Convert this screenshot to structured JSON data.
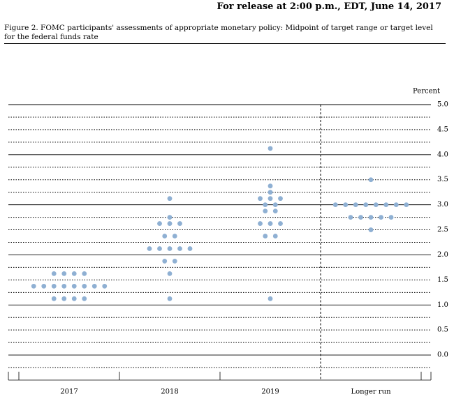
{
  "chart_data": {
    "type": "dotplot",
    "header": "For release at 2:00 p.m., EDT, June 14, 2017",
    "title": "Figure 2. FOMC participants' assessments of appropriate monetary policy: Midpoint of target range or target level for the federal funds rate",
    "y_label": "Percent",
    "categories": [
      "2017",
      "2018",
      "2019",
      "Longer run"
    ],
    "values": [
      [
        1.625,
        1.625,
        1.625,
        1.625,
        1.375,
        1.375,
        1.375,
        1.375,
        1.375,
        1.375,
        1.375,
        1.375,
        1.125,
        1.125,
        1.125,
        1.125
      ],
      [
        3.125,
        2.75,
        2.625,
        2.625,
        2.625,
        2.375,
        2.375,
        2.125,
        2.125,
        2.125,
        2.125,
        2.125,
        1.875,
        1.875,
        1.625,
        1.125
      ],
      [
        4.125,
        3.375,
        3.25,
        3.125,
        3.125,
        3.125,
        3.0,
        3.0,
        2.875,
        2.875,
        2.625,
        2.625,
        2.625,
        2.375,
        2.375,
        1.125
      ],
      [
        3.5,
        3.0,
        3.0,
        3.0,
        3.0,
        3.0,
        3.0,
        3.0,
        3.0,
        2.75,
        2.75,
        2.75,
        2.75,
        2.75,
        2.5
      ]
    ],
    "color": "#8fb0d3",
    "ylim": [
      -0.5,
      5.0
    ],
    "yticks": [
      {
        "value": 0,
        "label": "0.0"
      },
      {
        "value": 0.5,
        "label": "0.5"
      },
      {
        "value": 1,
        "label": "1.0"
      },
      {
        "value": 1.5,
        "label": "1.5"
      },
      {
        "value": 2,
        "label": "2.0"
      },
      {
        "value": 2.5,
        "label": "2.5"
      },
      {
        "value": 3,
        "label": "3.0"
      },
      {
        "value": 3.5,
        "label": "3.5"
      },
      {
        "value": 4,
        "label": "4.0"
      },
      {
        "value": 4.5,
        "label": "4.5"
      },
      {
        "value": 5,
        "label": "5.0"
      }
    ],
    "minor_yticks": [
      -0.25,
      0.25,
      0.75,
      1.25,
      1.75,
      2.25,
      2.75,
      3.25,
      3.75,
      4.25,
      4.75
    ],
    "grid": true
  }
}
